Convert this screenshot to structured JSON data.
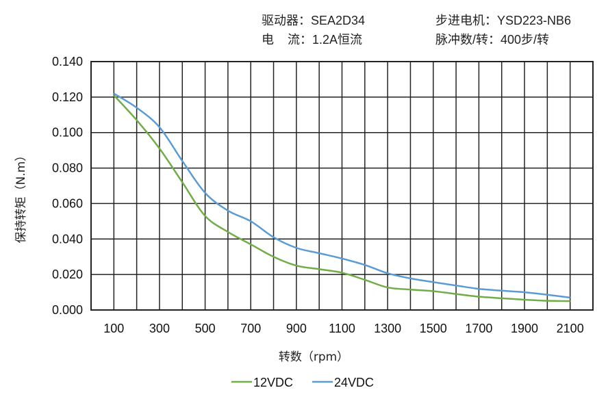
{
  "header": {
    "driver": "驱动器：SEA2D34",
    "motor": "步进电机：YSD223-NB6",
    "current": "电    流：1.2A恒流",
    "pulses": "脉冲数/转：400步/转"
  },
  "chart_data": {
    "type": "line",
    "xlabel": "转数（rpm）",
    "ylabel": "保持转矩（N.m）",
    "xlim": [
      0,
      2200
    ],
    "ylim": [
      0,
      0.14
    ],
    "grid": true,
    "legend_position": "bottom",
    "x_ticks": [
      "100",
      "300",
      "500",
      "700",
      "900",
      "1100",
      "1300",
      "1500",
      "1700",
      "1900",
      "2100"
    ],
    "y_ticks": [
      "0.000",
      "0.020",
      "0.040",
      "0.060",
      "0.080",
      "0.100",
      "0.120",
      "0.140"
    ],
    "x": [
      100,
      200,
      300,
      400,
      500,
      600,
      700,
      800,
      900,
      1000,
      1100,
      1200,
      1300,
      1400,
      1500,
      1600,
      1700,
      1800,
      1900,
      2000,
      2100
    ],
    "series": [
      {
        "name": "12VDC",
        "color": "#70ad47",
        "values": [
          0.121,
          0.107,
          0.091,
          0.072,
          0.053,
          0.044,
          0.037,
          0.03,
          0.025,
          0.023,
          0.021,
          0.017,
          0.0127,
          0.0115,
          0.0106,
          0.009,
          0.0075,
          0.0066,
          0.0058,
          0.0052,
          0.005
        ]
      },
      {
        "name": "24VDC",
        "color": "#5b9bd5",
        "values": [
          0.122,
          0.114,
          0.103,
          0.084,
          0.066,
          0.056,
          0.05,
          0.041,
          0.035,
          0.032,
          0.029,
          0.0254,
          0.0207,
          0.0178,
          0.0157,
          0.0138,
          0.0119,
          0.0109,
          0.01,
          0.0086,
          0.007
        ]
      }
    ]
  }
}
